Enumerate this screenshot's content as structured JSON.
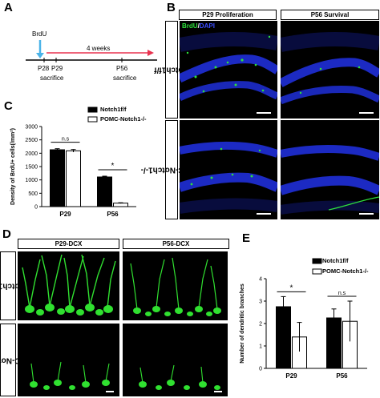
{
  "panels": {
    "a": {
      "letter": "A",
      "injection_label": "BrdU",
      "duration_label": "4 weeks",
      "timepoints": [
        "P28",
        "P29",
        "P56"
      ],
      "sacrifice_labels": [
        "sacrifice",
        "sacrifice"
      ],
      "colors": {
        "arrow": "#e8324f",
        "injection": "#4ab3e8"
      }
    },
    "b": {
      "letter": "B",
      "headers": [
        "P29 Proliferation",
        "P56 Survival"
      ],
      "row_labels": [
        "Notch1f/f",
        "POMC-Notch1-/-"
      ],
      "stain_brdu": "BrdU",
      "stain_sep": "/",
      "stain_dapi": "DAPI",
      "colors": {
        "brdu": "#2ee03c",
        "dapi": "#1f2fd8"
      }
    },
    "c": {
      "letter": "C",
      "ylabel": "Density of BrdU+ cells(/mm²)",
      "legend": [
        "Notch1f/f",
        "POMC-Notch1-/-"
      ],
      "significance": [
        "n.s",
        "*"
      ]
    },
    "d": {
      "letter": "D",
      "headers": [
        "P29-DCX",
        "P56-DCX"
      ],
      "row_labels": [
        "Notch1f/f",
        "POMC-Notch1-/-"
      ],
      "colors": {
        "dcx": "#30e030"
      }
    },
    "e": {
      "letter": "E",
      "ylabel": "Number of dendritic branches",
      "legend": [
        "Notch1f/f",
        "POMC-Notch1-/-"
      ],
      "significance": [
        "*",
        "n.s"
      ]
    }
  },
  "chart_data": [
    {
      "panel": "C",
      "type": "bar",
      "categories": [
        "P29",
        "P56"
      ],
      "series": [
        {
          "name": "Notch1f/f",
          "values": [
            2130,
            1110
          ],
          "errors": [
            40,
            30
          ],
          "color": "#000000"
        },
        {
          "name": "POMC-Notch1-/-",
          "values": [
            2090,
            130
          ],
          "errors": [
            50,
            15
          ],
          "color": "#ffffff"
        }
      ],
      "ylabel": "Density of BrdU+ cells(/mm²)",
      "ylim": [
        0,
        3000
      ],
      "yticks": [
        0,
        500,
        1000,
        1500,
        2000,
        2500,
        3000
      ],
      "legend_position": "top-right",
      "annotations": [
        {
          "category": "P29",
          "text": "n.s"
        },
        {
          "category": "P56",
          "text": "*"
        }
      ]
    },
    {
      "panel": "E",
      "type": "bar",
      "categories": [
        "P29",
        "P56"
      ],
      "series": [
        {
          "name": "Notch1f/f",
          "values": [
            2.75,
            2.25
          ],
          "errors": [
            0.45,
            0.4
          ],
          "color": "#000000"
        },
        {
          "name": "POMC-Notch1-/-",
          "values": [
            1.4,
            2.1
          ],
          "errors": [
            0.65,
            0.9
          ],
          "color": "#ffffff"
        }
      ],
      "ylabel": "Number of dendritic branches",
      "ylim": [
        0,
        4
      ],
      "yticks": [
        0,
        1,
        2,
        3,
        4
      ],
      "legend_position": "top-right",
      "annotations": [
        {
          "category": "P29",
          "text": "*"
        },
        {
          "category": "P56",
          "text": "n.s"
        }
      ]
    }
  ]
}
